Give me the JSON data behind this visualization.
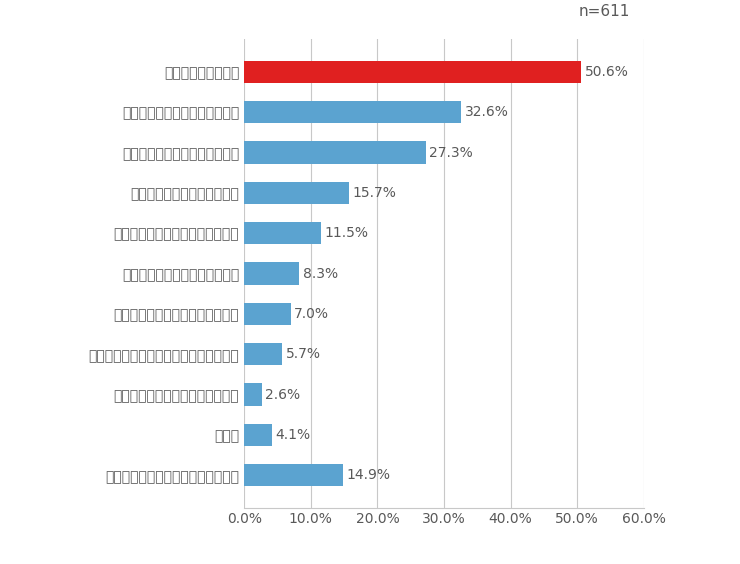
{
  "categories": [
    "学んだことを生かしたいと思わない",
    "その他",
    "学業、学校生活の中で生かしたい",
    "他の人の指導やアドバイスに生かしたい",
    "新たな生涯学習活動に生かしたい",
    "ボランティア活動に生かしたい",
    "地域や社会での活動に生かしたい",
    "仕事や就職の上で生かしたい",
    "家庭や日常の生活に生かしたい",
    "健康の維持・増進に役立てたい",
    "人生を豊かにしたい"
  ],
  "values": [
    14.9,
    4.1,
    2.6,
    5.7,
    7.0,
    8.3,
    11.5,
    15.7,
    27.3,
    32.6,
    50.6
  ],
  "colors": [
    "#5ba3d0",
    "#5ba3d0",
    "#5ba3d0",
    "#5ba3d0",
    "#5ba3d0",
    "#5ba3d0",
    "#5ba3d0",
    "#5ba3d0",
    "#5ba3d0",
    "#5ba3d0",
    "#e02020"
  ],
  "n_label": "n=611",
  "xlim": [
    0,
    60
  ],
  "xticks": [
    0,
    10,
    20,
    30,
    40,
    50,
    60
  ],
  "xtick_labels": [
    "0.0%",
    "10.0%",
    "20.0%",
    "30.0%",
    "40.0%",
    "50.0%",
    "60.0%"
  ],
  "bar_height": 0.55,
  "label_fontsize": 10.0,
  "value_fontsize": 10.0,
  "n_fontsize": 11,
  "background_color": "#ffffff",
  "text_color": "#595959",
  "grid_color": "#c8c8c8"
}
